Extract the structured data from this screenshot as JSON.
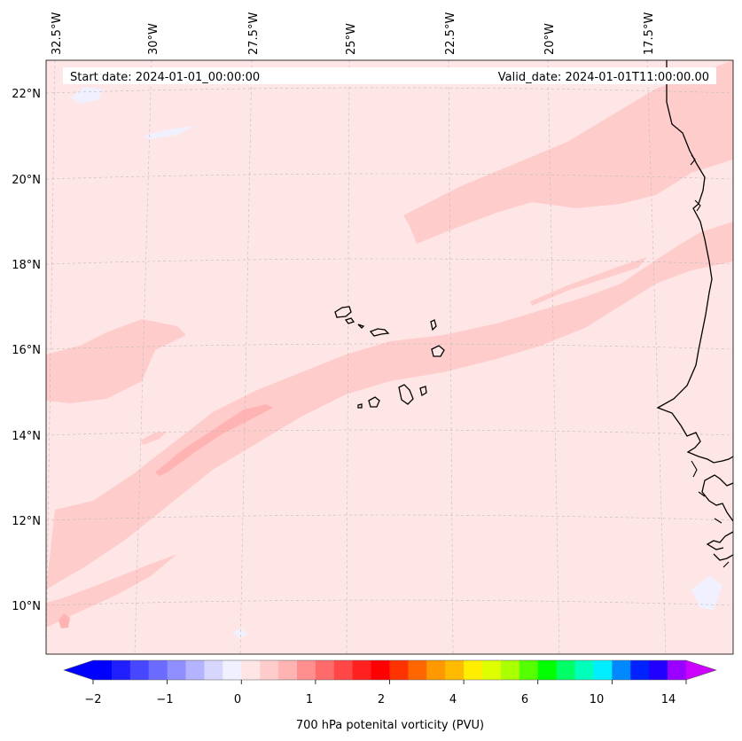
{
  "header": {
    "start_date": "Start date: 2024-01-01_00:00:00",
    "valid_date": "Valid_date: 2024-01-01T11:00:00.00"
  },
  "longitude_labels": [
    "32.5°W",
    "30°W",
    "27.5°W",
    "25°W",
    "22.5°W",
    "20°W",
    "17.5°W"
  ],
  "latitude_labels": [
    "22°N",
    "20°N",
    "18°N",
    "16°N",
    "14°N",
    "12°N",
    "10°N"
  ],
  "colorbar": {
    "label": "700 hPa potenital vorticity (PVU)",
    "tick_labels": [
      "−2",
      "−1",
      "0",
      "1",
      "2",
      "4",
      "6",
      "10",
      "14"
    ],
    "colors": [
      "#0000ff",
      "#2020ff",
      "#4747ff",
      "#6b6bff",
      "#8f8fff",
      "#b3b3ff",
      "#d6d6ff",
      "#f0f0ff",
      "#ffe6e6",
      "#ffcccc",
      "#ffb3b3",
      "#ff8f8f",
      "#ff6b6b",
      "#ff4747",
      "#ff2020",
      "#ff0000",
      "#ff3300",
      "#ff6600",
      "#ff9900",
      "#ffbb00",
      "#ffee00",
      "#ddff00",
      "#aaff00",
      "#55ff00",
      "#00ff00",
      "#00ff66",
      "#00ffbb",
      "#00eeff",
      "#0088ff",
      "#0022ff",
      "#2200ff",
      "#9900ff"
    ],
    "extend_low_color": "#0000ff",
    "extend_high_color": "#cc00ff"
  },
  "fill_colors": {
    "background": "#ffe6e6",
    "band": "#ffcccc",
    "core": "#ffb3b3",
    "negative": "#f0f0ff"
  }
}
